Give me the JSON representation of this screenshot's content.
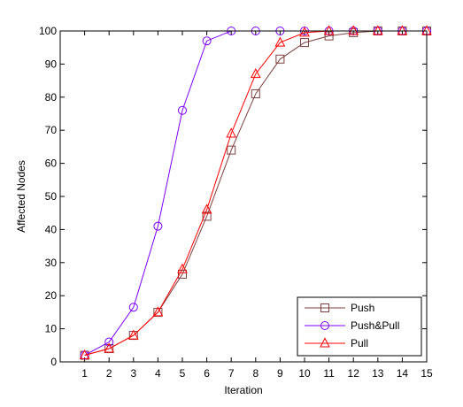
{
  "chart_data": {
    "type": "line",
    "title": "",
    "xlabel": "Iteration",
    "ylabel": "Affected Nodes",
    "xlim": [
      0,
      15
    ],
    "ylim": [
      0,
      100
    ],
    "x": [
      1,
      2,
      3,
      4,
      5,
      6,
      7,
      8,
      9,
      10,
      11,
      12,
      13,
      14,
      15
    ],
    "xticks": [
      "1",
      "2",
      "3",
      "4",
      "5",
      "6",
      "7",
      "8",
      "9",
      "10",
      "11",
      "12",
      "13",
      "14",
      "15"
    ],
    "yticks": [
      "0",
      "10",
      "20",
      "30",
      "40",
      "50",
      "60",
      "70",
      "80",
      "90",
      "100"
    ],
    "grid": false,
    "legend_position": "bottom-right",
    "series": [
      {
        "name": "Push",
        "color": "#7f4040",
        "marker": "square",
        "values": [
          2,
          4,
          8,
          15,
          26.5,
          44,
          64,
          81,
          91.5,
          96.5,
          98.5,
          99.5,
          100,
          100,
          100
        ]
      },
      {
        "name": "Push&Pull",
        "color": "#7f00ff",
        "marker": "circle",
        "values": [
          2,
          6,
          16.5,
          41,
          76,
          97,
          100,
          100,
          100,
          100,
          100,
          100,
          100,
          100,
          100
        ]
      },
      {
        "name": "Pull",
        "color": "#ff0000",
        "marker": "triangle",
        "values": [
          2,
          4,
          8,
          15,
          28,
          46,
          69,
          87,
          96.5,
          99.5,
          100,
          100,
          100,
          100,
          100
        ]
      }
    ]
  }
}
